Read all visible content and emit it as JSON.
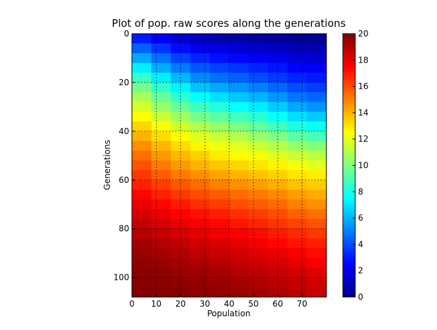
{
  "chart_data": {
    "type": "heatmap",
    "title": "Plot of pop. raw scores along the generations",
    "xlabel": "Population",
    "ylabel": "Generations",
    "xlim": [
      0,
      80
    ],
    "ylim": [
      108,
      0
    ],
    "x_ticks": [
      0,
      10,
      20,
      30,
      40,
      50,
      60,
      70
    ],
    "y_ticks": [
      0,
      20,
      40,
      60,
      80,
      100
    ],
    "colormap": "jet",
    "color_range": [
      0,
      20
    ],
    "colorbar_ticks": [
      0,
      2,
      4,
      6,
      8,
      10,
      12,
      14,
      16,
      18,
      20
    ],
    "grid": true,
    "grid_style": "dotted",
    "colorbar_position": "right",
    "row_step": 4,
    "column_step": 8,
    "generations": [
      0,
      4,
      8,
      12,
      16,
      20,
      24,
      28,
      32,
      36,
      40,
      44,
      48,
      52,
      56,
      60,
      64,
      68,
      72,
      76,
      80,
      84,
      88,
      92,
      96,
      100,
      104
    ],
    "population": [
      0,
      8,
      16,
      24,
      32,
      40,
      48,
      56,
      64,
      72
    ],
    "values": [
      [
        3.0,
        2.3,
        1.6,
        1.2,
        0.9,
        0.8,
        0.6,
        0.5,
        0.4,
        0.3
      ],
      [
        4.4,
        3.5,
        2.7,
        2.2,
        1.9,
        1.7,
        1.5,
        1.3,
        1.1,
        0.9
      ],
      [
        5.8,
        4.7,
        3.8,
        3.2,
        2.8,
        2.6,
        2.4,
        2.1,
        1.8,
        1.6
      ],
      [
        7.2,
        5.9,
        4.9,
        4.2,
        3.8,
        3.5,
        3.2,
        2.9,
        2.5,
        2.3
      ],
      [
        8.6,
        7.2,
        6.1,
        5.2,
        4.7,
        4.4,
        4.0,
        3.6,
        3.2,
        3.0
      ],
      [
        9.8,
        8.4,
        7.3,
        6.3,
        5.8,
        5.4,
        5.0,
        4.5,
        4.0,
        3.7
      ],
      [
        10.8,
        9.5,
        8.4,
        7.5,
        6.9,
        6.4,
        6.0,
        5.4,
        4.8,
        4.5
      ],
      [
        11.7,
        10.5,
        9.5,
        8.7,
        8.1,
        7.6,
        7.1,
        6.5,
        5.8,
        5.4
      ],
      [
        12.5,
        11.5,
        10.6,
        9.8,
        9.3,
        8.8,
        8.3,
        7.6,
        6.9,
        6.5
      ],
      [
        13.3,
        12.4,
        11.6,
        10.9,
        10.4,
        9.9,
        9.4,
        8.8,
        8.1,
        7.7
      ],
      [
        14.0,
        13.2,
        12.5,
        11.9,
        11.4,
        11.0,
        10.5,
        10.0,
        9.3,
        8.9
      ],
      [
        14.7,
        13.9,
        13.2,
        12.7,
        12.2,
        11.9,
        11.5,
        11.0,
        10.5,
        10.1
      ],
      [
        15.3,
        14.5,
        13.9,
        13.4,
        12.9,
        12.6,
        12.3,
        11.9,
        11.5,
        11.2
      ],
      [
        15.9,
        15.1,
        14.5,
        14.0,
        13.6,
        13.3,
        13.0,
        12.7,
        12.3,
        12.0
      ],
      [
        16.4,
        15.7,
        15.1,
        14.7,
        14.3,
        14.0,
        13.7,
        13.4,
        13.0,
        12.8
      ],
      [
        16.9,
        16.3,
        15.8,
        15.4,
        15.0,
        14.7,
        14.4,
        14.1,
        13.7,
        13.5
      ],
      [
        17.4,
        16.9,
        16.4,
        16.0,
        15.7,
        15.4,
        15.1,
        14.8,
        14.4,
        14.1
      ],
      [
        17.9,
        17.4,
        17.0,
        16.6,
        16.3,
        16.0,
        15.7,
        15.4,
        15.0,
        14.7
      ],
      [
        18.3,
        17.9,
        17.5,
        17.2,
        16.9,
        16.6,
        16.3,
        16.0,
        15.6,
        15.3
      ],
      [
        18.7,
        18.3,
        17.9,
        17.6,
        17.4,
        17.1,
        16.8,
        16.5,
        16.2,
        15.9
      ],
      [
        19.0,
        18.6,
        18.3,
        18.0,
        17.8,
        17.6,
        17.3,
        17.0,
        16.7,
        16.4
      ],
      [
        19.3,
        19.0,
        18.7,
        18.4,
        18.2,
        18.0,
        17.7,
        17.4,
        17.1,
        16.9
      ],
      [
        19.5,
        19.2,
        19.0,
        18.8,
        18.6,
        18.4,
        18.1,
        17.9,
        17.6,
        17.3
      ],
      [
        19.7,
        19.5,
        19.3,
        19.1,
        18.9,
        18.7,
        18.5,
        18.3,
        18.0,
        17.7
      ],
      [
        19.8,
        19.7,
        19.5,
        19.4,
        19.2,
        19.0,
        18.8,
        18.6,
        18.4,
        18.1
      ],
      [
        19.9,
        19.8,
        19.7,
        19.6,
        19.5,
        19.3,
        19.1,
        18.9,
        18.7,
        18.4
      ],
      [
        20.0,
        19.9,
        19.8,
        19.7,
        19.6,
        19.5,
        19.3,
        19.1,
        18.9,
        18.6
      ]
    ]
  }
}
